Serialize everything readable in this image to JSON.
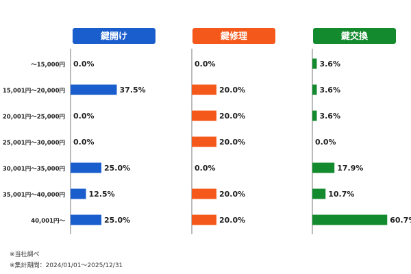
{
  "chart_data": {
    "type": "bar",
    "orientation": "horizontal",
    "categories": [
      "〜15,000円",
      "15,001円〜20,000円",
      "20,001円〜25,000円",
      "25,001円〜30,000円",
      "30,001円〜35,000円",
      "35,001円〜40,000円",
      "40,001円〜"
    ],
    "series": [
      {
        "name": "鍵開け",
        "color": "#1a5dcc",
        "values": [
          0.0,
          37.5,
          0.0,
          0.0,
          25.0,
          12.5,
          25.0
        ]
      },
      {
        "name": "鍵修理",
        "color": "#f4581a",
        "values": [
          0.0,
          20.0,
          20.0,
          20.0,
          0.0,
          20.0,
          20.0
        ]
      },
      {
        "name": "鍵交換",
        "color": "#148a2e",
        "values": [
          3.6,
          3.6,
          3.6,
          0.0,
          17.9,
          10.7,
          60.7
        ]
      }
    ],
    "value_suffix": "%",
    "xlim": [
      0,
      100
    ],
    "grid": false,
    "legend": "panel headers"
  },
  "footnotes": [
    "※当社調べ",
    "※集計期間：2024/01/01〜2025/12/31"
  ]
}
